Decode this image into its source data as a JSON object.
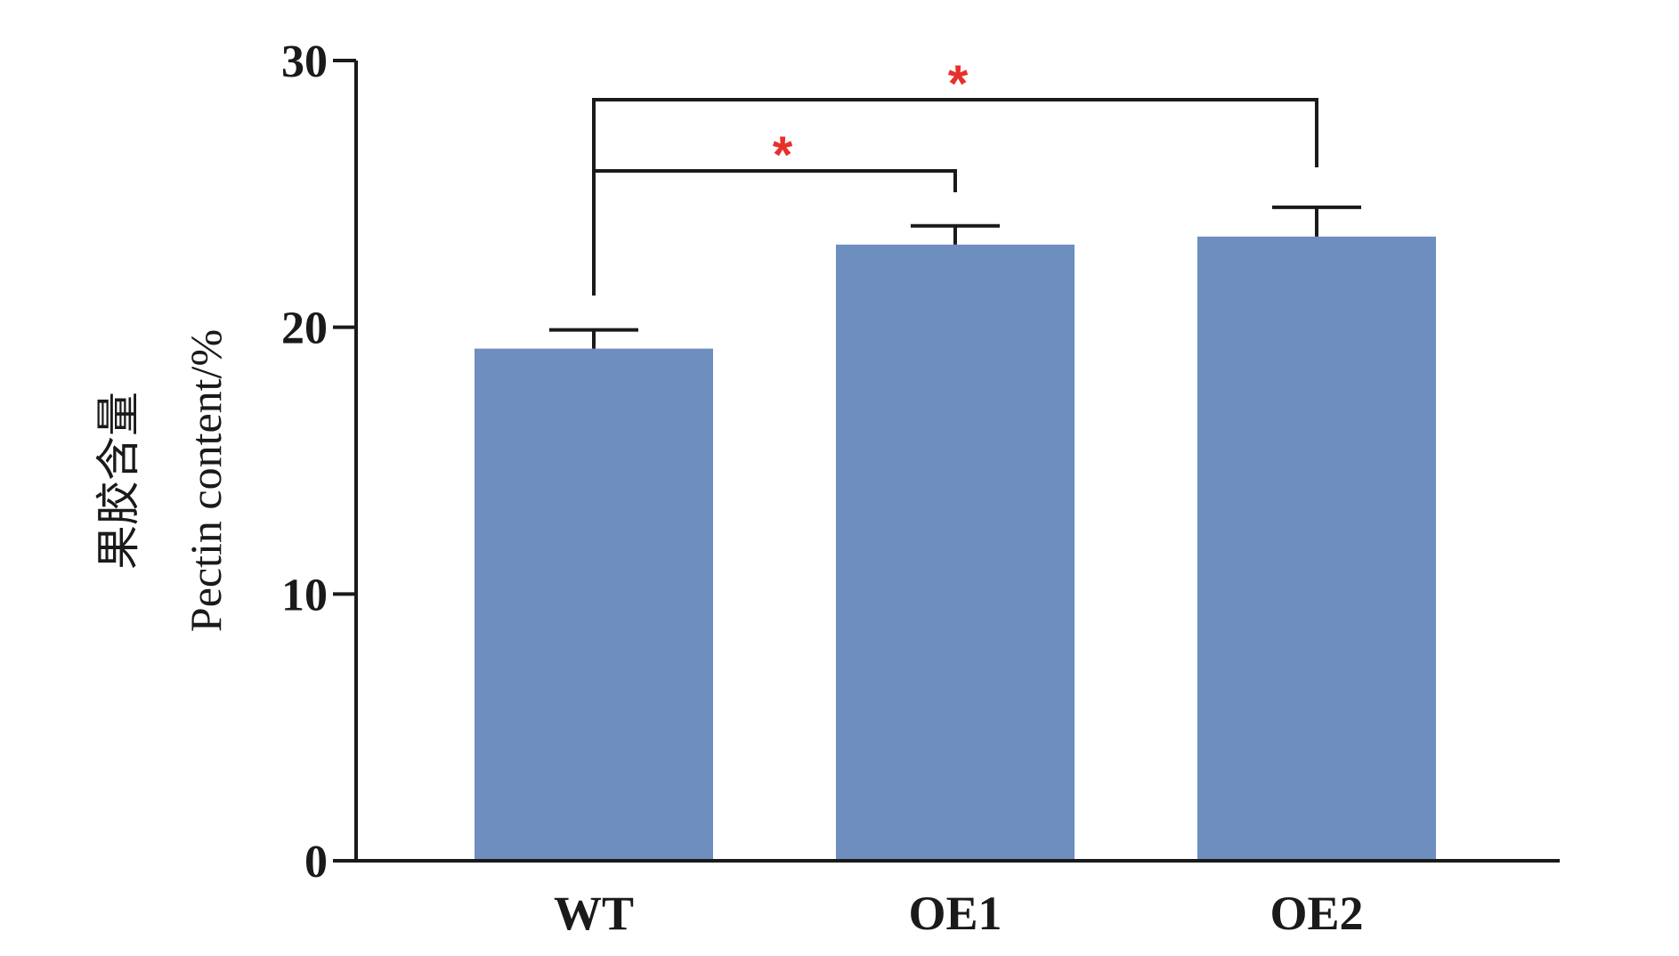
{
  "chart_data": {
    "type": "bar",
    "categories": [
      "WT",
      "OE1",
      "OE2"
    ],
    "values": [
      19.2,
      23.1,
      23.4
    ],
    "errors": [
      0.7,
      0.7,
      1.1
    ],
    "ylabel_cn": "果胶含量",
    "ylabel_en": "Pectin content/%",
    "xlabel": "",
    "ylim": [
      0,
      30
    ],
    "yticks": [
      0,
      10,
      20,
      30
    ],
    "grid": false,
    "legend": "none",
    "colors": {
      "bar": "#6d8ebf",
      "axis": "#1a1a1a",
      "significance": "#e8302b"
    },
    "comparisons": [
      {
        "from": "WT",
        "to": "OE1",
        "label": "*"
      },
      {
        "from": "WT",
        "to": "OE2",
        "label": "*"
      }
    ]
  }
}
